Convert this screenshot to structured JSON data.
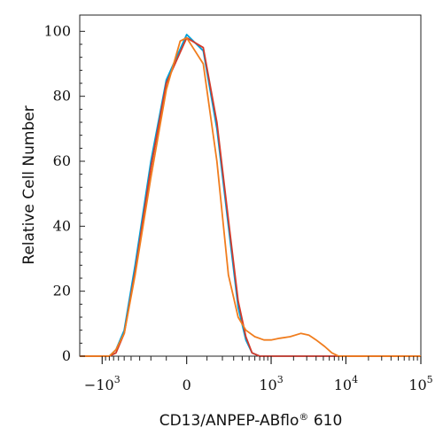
{
  "chart_data": {
    "type": "line",
    "title": "",
    "xlabel": "CD13/ANPEP-ABflo",
    "xlabel_sup": "®",
    "xlabel_suffix": " 610",
    "ylabel": "Relative Cell Number",
    "x_scale": "biexponential",
    "xlim": [
      -2000,
      100000
    ],
    "ylim": [
      0,
      105
    ],
    "y_ticks": [
      0,
      20,
      40,
      60,
      80,
      100
    ],
    "x_ticks": [
      {
        "value": -1000,
        "base": "−10",
        "exp": "3"
      },
      {
        "value": 0,
        "base": "0",
        "exp": ""
      },
      {
        "value": 1000,
        "base": "10",
        "exp": "3"
      },
      {
        "value": 10000,
        "base": "10",
        "exp": "4"
      },
      {
        "value": 100000,
        "base": "10",
        "exp": "5"
      }
    ],
    "legend": "none",
    "grid": false,
    "series": [
      {
        "color": "#00a0d8",
        "x": [
          -2000,
          -800,
          -650,
          -500,
          -350,
          -200,
          -100,
          0,
          80,
          160,
          250,
          350,
          450,
          550,
          700,
          1000,
          5000,
          100000
        ],
        "y": [
          0,
          0,
          2,
          8,
          28,
          60,
          85,
          99,
          94,
          70,
          40,
          15,
          5,
          1,
          0,
          0,
          0,
          0
        ]
      },
      {
        "color": "#d33a2a",
        "x": [
          -2000,
          -800,
          -650,
          -500,
          -350,
          -200,
          -100,
          0,
          80,
          160,
          250,
          350,
          450,
          550,
          700,
          1000,
          5000,
          100000
        ],
        "y": [
          0,
          0,
          1,
          7,
          26,
          58,
          84,
          98,
          95,
          72,
          42,
          17,
          6,
          1,
          0,
          0,
          0,
          0
        ]
      },
      {
        "color": "#f07d1e",
        "x": [
          -2000,
          -800,
          -650,
          -500,
          -350,
          -200,
          -100,
          -30,
          0,
          80,
          160,
          250,
          350,
          450,
          600,
          800,
          1000,
          1300,
          1800,
          2500,
          3200,
          4000,
          5200,
          6500,
          8000,
          100000
        ],
        "y": [
          0,
          0,
          2,
          7,
          25,
          55,
          82,
          97,
          98,
          90,
          60,
          25,
          12,
          8,
          6,
          5,
          5,
          5.5,
          6,
          7,
          6.5,
          5,
          3,
          1,
          0,
          0
        ]
      }
    ]
  }
}
